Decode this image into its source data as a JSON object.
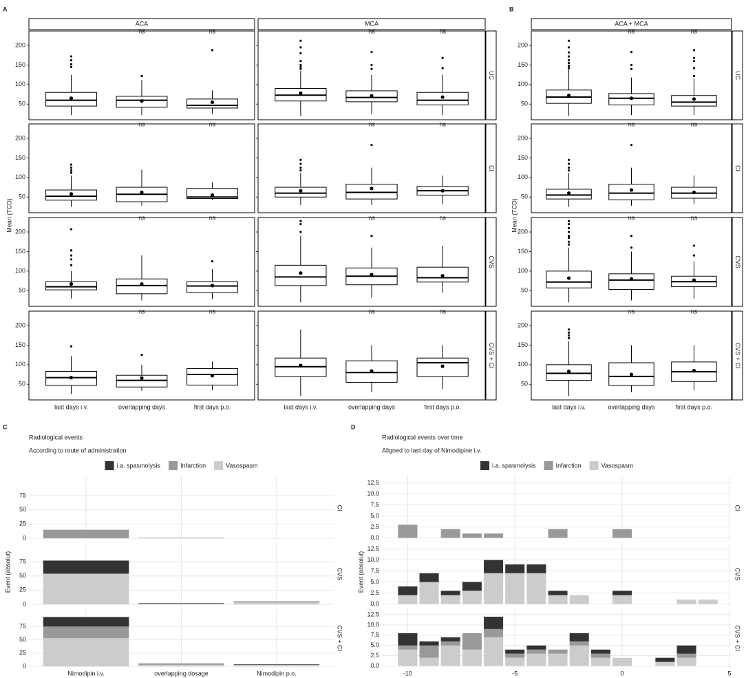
{
  "chart_data": [
    {
      "type": "box",
      "panel": "A",
      "y_title": "Mean (TCD)",
      "facets": [
        "ACA",
        "MCA"
      ],
      "rows": [
        "UC",
        "CI",
        "CVS",
        "CVS + CI"
      ],
      "categories": [
        "last days i.v.",
        "overlapping days",
        "first days p.o."
      ],
      "ylim": [
        10,
        237
      ],
      "yticks": [
        50,
        100,
        150,
        200
      ],
      "boxes": [
        [
          [
            {
              "lo": 22,
              "q1": 45,
              "med": 60,
              "q3": 80,
              "hi": 125,
              "mean": 65,
              "out": [
                145,
                152,
                162,
                172
              ]
            },
            {
              "lo": 22,
              "q1": 42,
              "med": 60,
              "q3": 70,
              "hi": 112,
              "mean": 58,
              "out": [
                122
              ],
              "label": "ns"
            },
            {
              "lo": 25,
              "q1": 40,
              "med": 47,
              "q3": 63,
              "hi": 85,
              "mean": 55,
              "out": [
                188
              ],
              "label": "ns"
            }
          ],
          [
            {
              "lo": 20,
              "q1": 58,
              "med": 73,
              "q3": 90,
              "hi": 135,
              "mean": 78,
              "out": [
                140,
                145,
                150,
                160,
                180,
                195,
                212
              ]
            },
            {
              "lo": 25,
              "q1": 56,
              "med": 67,
              "q3": 84,
              "hi": 125,
              "mean": 71,
              "out": [
                140,
                150,
                183
              ],
              "label": "ns"
            },
            {
              "lo": 22,
              "q1": 48,
              "med": 60,
              "q3": 80,
              "hi": 125,
              "mean": 68,
              "out": [
                142,
                168
              ],
              "label": "ns"
            }
          ]
        ],
        [
          [
            {
              "lo": 25,
              "q1": 42,
              "med": 52,
              "q3": 68,
              "hi": 105,
              "mean": 58,
              "out": [
                112,
                118,
                125,
                133
              ]
            },
            {
              "lo": 28,
              "q1": 38,
              "med": 57,
              "q3": 75,
              "hi": 120,
              "mean": 62,
              "out": [],
              "label": "ns"
            },
            {
              "lo": 42,
              "q1": 46,
              "med": 50,
              "q3": 72,
              "hi": 88,
              "mean": 55,
              "out": [],
              "label": "ns"
            }
          ],
          [
            {
              "lo": 30,
              "q1": 50,
              "med": 60,
              "q3": 75,
              "hi": 112,
              "mean": 66,
              "out": [
                118,
                125,
                135,
                145
              ]
            },
            {
              "lo": 30,
              "q1": 45,
              "med": 62,
              "q3": 83,
              "hi": 125,
              "mean": 72,
              "out": [
                183
              ],
              "label": "ns"
            },
            {
              "lo": 32,
              "q1": 55,
              "med": 66,
              "q3": 77,
              "hi": 105,
              "mean": 66,
              "out": [],
              "label": "ns"
            }
          ]
        ],
        [
          [
            {
              "lo": 30,
              "q1": 52,
              "med": 60,
              "q3": 73,
              "hi": 100,
              "mean": 67,
              "out": [
                115,
                130,
                140,
                153,
                207
              ]
            },
            {
              "lo": 25,
              "q1": 42,
              "med": 63,
              "q3": 80,
              "hi": 140,
              "mean": 67,
              "out": [],
              "label": "ns"
            },
            {
              "lo": 28,
              "q1": 45,
              "med": 62,
              "q3": 73,
              "hi": 105,
              "mean": 63,
              "out": [
                125
              ],
              "label": "ns"
            }
          ],
          [
            {
              "lo": 20,
              "q1": 63,
              "med": 85,
              "q3": 115,
              "hi": 190,
              "mean": 95,
              "out": [
                200,
                220,
                228
              ]
            },
            {
              "lo": 32,
              "q1": 65,
              "med": 87,
              "q3": 108,
              "hi": 160,
              "mean": 91,
              "out": [
                190
              ],
              "label": "ns"
            },
            {
              "lo": 45,
              "q1": 72,
              "med": 83,
              "q3": 110,
              "hi": 165,
              "mean": 88,
              "out": [],
              "label": "ns"
            }
          ]
        ],
        [
          [
            {
              "lo": 25,
              "q1": 47,
              "med": 67,
              "q3": 83,
              "hi": 122,
              "mean": 67,
              "out": [
                147
              ]
            },
            {
              "lo": 33,
              "q1": 43,
              "med": 60,
              "q3": 73,
              "hi": 100,
              "mean": 66,
              "out": [
                125
              ],
              "label": "ns"
            },
            {
              "lo": 35,
              "q1": 48,
              "med": 75,
              "q3": 90,
              "hi": 108,
              "mean": 72,
              "out": [],
              "label": "ns"
            }
          ],
          [
            {
              "lo": 20,
              "q1": 70,
              "med": 95,
              "q3": 117,
              "hi": 190,
              "mean": 98,
              "out": []
            },
            {
              "lo": 30,
              "q1": 55,
              "med": 80,
              "q3": 110,
              "hi": 150,
              "mean": 84,
              "out": [],
              "label": "ns"
            },
            {
              "lo": 38,
              "q1": 70,
              "med": 105,
              "q3": 117,
              "hi": 150,
              "mean": 96,
              "out": [],
              "label": "ns"
            }
          ]
        ]
      ]
    },
    {
      "type": "box",
      "panel": "B",
      "y_title": "Mean (TCD)",
      "facets": [
        "ACA + MCA"
      ],
      "rows": [
        "UC",
        "CI",
        "CVS",
        "CVS + CI"
      ],
      "categories": [
        "last days i.v.",
        "overlapping days",
        "first days p.o."
      ],
      "ylim": [
        10,
        237
      ],
      "yticks": [
        50,
        100,
        150,
        200
      ],
      "boxes": [
        [
          [
            {
              "lo": 20,
              "q1": 52,
              "med": 68,
              "q3": 86,
              "hi": 140,
              "mean": 72,
              "out": [
                142,
                148,
                155,
                162,
                172,
                182,
                195,
                212
              ]
            },
            {
              "lo": 22,
              "q1": 48,
              "med": 65,
              "q3": 77,
              "hi": 118,
              "mean": 65,
              "out": [
                140,
                150,
                183
              ],
              "label": "ns"
            },
            {
              "lo": 22,
              "q1": 45,
              "med": 55,
              "q3": 72,
              "hi": 115,
              "mean": 63,
              "out": [
                122,
                142,
                160,
                168,
                188
              ],
              "label": "ns"
            }
          ]
        ],
        [
          [
            {
              "lo": 25,
              "q1": 45,
              "med": 55,
              "q3": 70,
              "hi": 112,
              "mean": 60,
              "out": [
                118,
                125,
                135,
                145
              ]
            },
            {
              "lo": 28,
              "q1": 43,
              "med": 60,
              "q3": 83,
              "hi": 125,
              "mean": 68,
              "out": [
                183
              ],
              "label": "ns"
            },
            {
              "lo": 32,
              "q1": 47,
              "med": 60,
              "q3": 75,
              "hi": 105,
              "mean": 62,
              "out": [],
              "label": "ns"
            }
          ]
        ],
        [
          [
            {
              "lo": 20,
              "q1": 57,
              "med": 72,
              "q3": 100,
              "hi": 160,
              "mean": 82,
              "out": [
                168,
                175,
                185,
                190,
                200,
                210,
                220,
                228
              ]
            },
            {
              "lo": 25,
              "q1": 53,
              "med": 77,
              "q3": 93,
              "hi": 150,
              "mean": 80,
              "out": [
                160,
                190
              ],
              "label": "ns"
            },
            {
              "lo": 30,
              "q1": 60,
              "med": 73,
              "q3": 87,
              "hi": 125,
              "mean": 77,
              "out": [
                140,
                165
              ],
              "label": "ns"
            }
          ]
        ],
        [
          [
            {
              "lo": 20,
              "q1": 60,
              "med": 78,
              "q3": 100,
              "hi": 160,
              "mean": 83,
              "out": [
                168,
                175,
                182,
                190
              ]
            },
            {
              "lo": 30,
              "q1": 47,
              "med": 70,
              "q3": 105,
              "hi": 150,
              "mean": 75,
              "out": [],
              "label": "ns"
            },
            {
              "lo": 35,
              "q1": 57,
              "med": 82,
              "q3": 107,
              "hi": 150,
              "mean": 85,
              "out": [],
              "label": "ns"
            }
          ]
        ]
      ]
    },
    {
      "type": "bar",
      "panel": "C",
      "title": "Radiological events",
      "subtitle": "According to route of administration",
      "y_title": "Event (absolut)",
      "stacked": true,
      "grid": true,
      "categories": [
        "Nimodipin i.v.",
        "overlapping dosage",
        "Nimodipin p.o."
      ],
      "facets": [
        {
          "label": "CI"
        },
        {
          "label": "CVS"
        },
        {
          "label": "CVS + CI"
        }
      ],
      "ylim": [
        -2.4,
        109
      ],
      "yticks": [
        0,
        25,
        50,
        75
      ],
      "series": [
        {
          "name": "i.a. spasmolysis",
          "color": "#333333",
          "values": [
            [
              0,
              0,
              0
            ],
            [
              23,
              1,
              1
            ],
            [
              18,
              1,
              1
            ]
          ]
        },
        {
          "name": "Infarction",
          "color": "#999999",
          "values": [
            [
              15,
              1,
              0
            ],
            [
              0,
              0,
              0
            ],
            [
              22,
              1,
              0
            ]
          ]
        },
        {
          "name": "Vasospasm",
          "color": "#cccccc",
          "values": [
            [
              0,
              0,
              0
            ],
            [
              54,
              1,
              4
            ],
            [
              53,
              3,
              3
            ]
          ]
        }
      ]
    },
    {
      "type": "bar",
      "panel": "D",
      "title": "Radiological events over time",
      "subtitle": "Aligned to last day of Nimodipine i.v.",
      "y_title": "Event (absolut)",
      "stacked": true,
      "grid": true,
      "facets": [
        {
          "label": "CI",
          "x": [
            -10,
            -8,
            -7,
            -6,
            -3,
            0
          ]
        },
        {
          "label": "CVS",
          "x": [
            -10,
            -9,
            -8,
            -7,
            -6,
            -5,
            -4,
            -3,
            -2,
            0,
            3,
            4
          ]
        },
        {
          "label": "CVS + CI",
          "x": [
            -10,
            -9,
            -8,
            -7,
            -6,
            -5,
            -4,
            -3,
            -2,
            -1,
            0,
            2,
            3
          ]
        }
      ],
      "xlim": [
        -11.2,
        5.1
      ],
      "xticks": [
        -10,
        -5,
        0,
        5
      ],
      "ylim": [
        -0.4,
        14
      ],
      "yticks": [
        {
          "value": 0,
          "label": "0.0"
        },
        2.5,
        {
          "value": 5,
          "label": "5.0"
        },
        7.5,
        {
          "value": 10,
          "label": "10.0"
        },
        12.5
      ],
      "series": [
        {
          "name": "i.a. spasmolysis",
          "color": "#333333",
          "values": [
            [
              0,
              0,
              0,
              0,
              0,
              0
            ],
            [
              2,
              2,
              1,
              2,
              3,
              2,
              2,
              1,
              0,
              1,
              0,
              0
            ],
            [
              3,
              1,
              1,
              0,
              3,
              1,
              1,
              0,
              2,
              1,
              0,
              1,
              2
            ]
          ]
        },
        {
          "name": "Infarction",
          "color": "#999999",
          "values": [
            [
              3,
              2,
              1,
              1,
              2,
              2
            ],
            [
              0,
              0,
              0,
              0,
              0,
              0,
              0,
              0,
              0,
              0,
              0,
              0
            ],
            [
              1,
              3,
              1,
              4,
              2,
              1,
              1,
              1,
              1,
              1,
              0,
              0,
              1
            ]
          ]
        },
        {
          "name": "Vasospasm",
          "color": "#cccccc",
          "values": [
            [
              0,
              0,
              0,
              0,
              0,
              0
            ],
            [
              2,
              5,
              2,
              3,
              7,
              7,
              7,
              2,
              2,
              2,
              1,
              1
            ],
            [
              4,
              2,
              5,
              4,
              7,
              2,
              3,
              3,
              5,
              2,
              2,
              1,
              2
            ]
          ]
        }
      ]
    }
  ]
}
